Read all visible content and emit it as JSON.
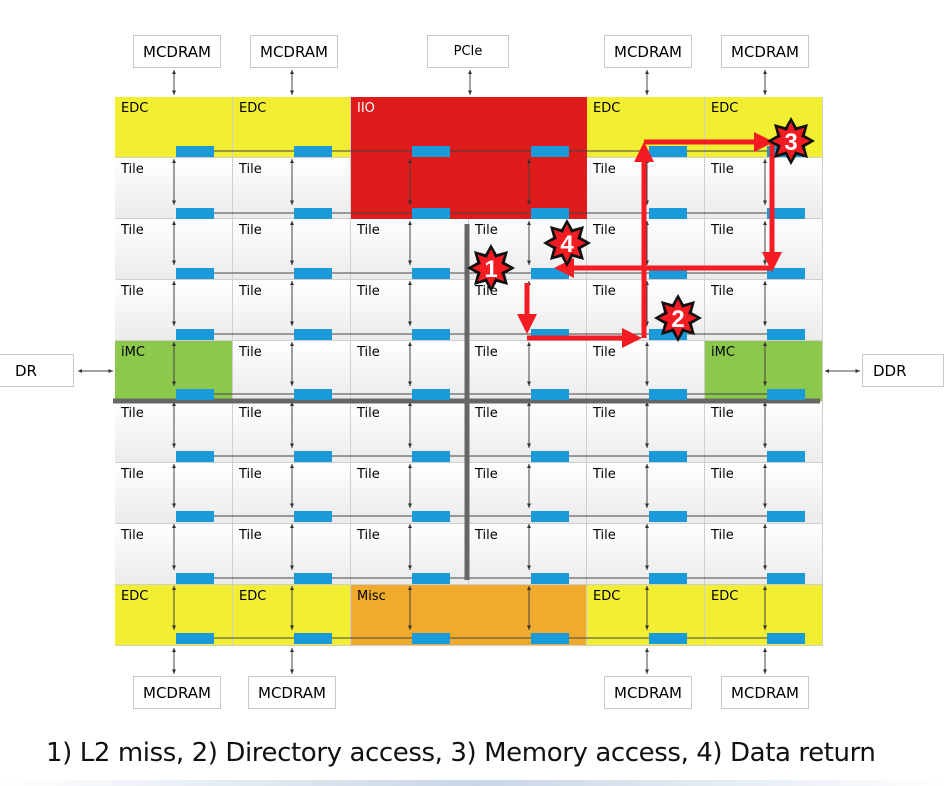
{
  "top_external": [
    "MCDRAM",
    "MCDRAM",
    "PCIe",
    "MCDRAM",
    "MCDRAM"
  ],
  "bottom_external": [
    "MCDRAM",
    "MCDRAM",
    "MCDRAM",
    "MCDRAM"
  ],
  "side_external": {
    "left": "DR",
    "right": "DDR"
  },
  "grid": [
    [
      "EDC",
      "EDC",
      "IIO",
      "",
      "EDC",
      "EDC"
    ],
    [
      "Tile",
      "Tile",
      "",
      "",
      "Tile",
      "Tile"
    ],
    [
      "Tile",
      "Tile",
      "Tile",
      "Tile",
      "Tile",
      "Tile"
    ],
    [
      "Tile",
      "Tile",
      "Tile",
      "Tile",
      "Tile",
      "Tile"
    ],
    [
      "iMC",
      "Tile",
      "Tile",
      "Tile",
      "Tile",
      "iMC"
    ],
    [
      "Tile",
      "Tile",
      "Tile",
      "Tile",
      "Tile",
      "Tile"
    ],
    [
      "Tile",
      "Tile",
      "Tile",
      "Tile",
      "Tile",
      "Tile"
    ],
    [
      "Tile",
      "Tile",
      "Tile",
      "Tile",
      "Tile",
      "Tile"
    ],
    [
      "EDC",
      "EDC",
      "Misc",
      "",
      "EDC",
      "EDC"
    ]
  ],
  "steps": [
    "1",
    "2",
    "3",
    "4"
  ],
  "caption": "1) L2 miss,  2) Directory access,  3) Memory access,  4) Data return",
  "colors": {
    "edc": "#f2ef32",
    "iio": "#e01b1b",
    "imc": "#8cc84b",
    "misc": "#f0ab2c",
    "stop": "#1a9ad8",
    "path": "#f21c22",
    "divider": "#666666"
  }
}
